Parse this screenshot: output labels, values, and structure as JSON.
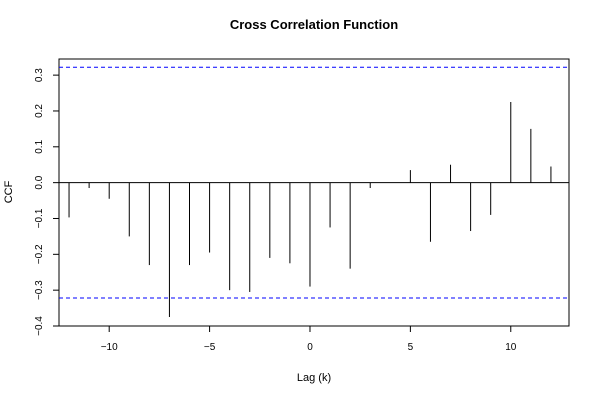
{
  "chart_data": {
    "type": "bar",
    "title": "Cross Correlation Function",
    "xlabel": "Lag (k)",
    "ylabel": "CCF",
    "xlim": [
      -12.5,
      12.9
    ],
    "ylim": [
      -0.4,
      0.345
    ],
    "x_ticks": [
      -10,
      -5,
      0,
      5,
      10
    ],
    "x_tick_labels": [
      "−10",
      "−5",
      "0",
      "5",
      "10"
    ],
    "y_ticks": [
      -0.4,
      -0.3,
      -0.2,
      -0.1,
      0.0,
      0.1,
      0.2,
      0.3
    ],
    "y_tick_labels": [
      "−0.4",
      "−0.3",
      "−0.2",
      "−0.1",
      "0.0",
      "0.1",
      "0.2",
      "0.3"
    ],
    "lags": [
      -12,
      -11,
      -10,
      -9,
      -8,
      -7,
      -6,
      -5,
      -4,
      -3,
      -2,
      -1,
      0,
      1,
      2,
      3,
      4,
      5,
      6,
      7,
      8,
      9,
      10,
      11,
      12
    ],
    "values": [
      -0.097,
      -0.015,
      -0.045,
      -0.15,
      -0.23,
      -0.375,
      -0.23,
      -0.195,
      -0.3,
      -0.305,
      -0.21,
      -0.225,
      -0.29,
      -0.125,
      -0.24,
      -0.015,
      0.0,
      0.035,
      -0.165,
      0.05,
      -0.135,
      -0.09,
      0.225,
      0.15,
      0.045
    ],
    "confidence_bounds": [
      0.322,
      -0.322
    ],
    "bound_color": "#0000ff",
    "grid": false
  }
}
